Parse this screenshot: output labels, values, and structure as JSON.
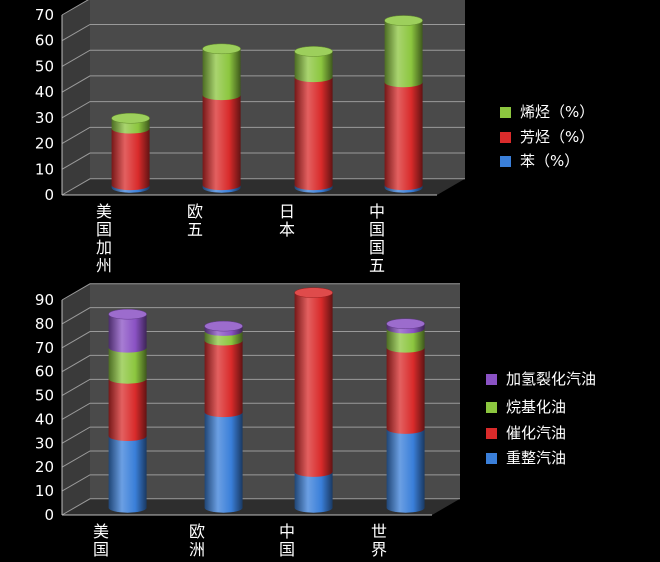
{
  "chart_data": [
    {
      "type": "bar",
      "stacked": true,
      "categories": [
        "美国加州",
        "欧五",
        "日本",
        "中国国五"
      ],
      "series": [
        {
          "name": "苯（%）",
          "color": "#3a7fd9",
          "values": [
            1,
            1,
            1,
            1
          ]
        },
        {
          "name": "芳烃（%）",
          "color": "#d92b2b",
          "values": [
            22,
            35,
            42,
            40
          ]
        },
        {
          "name": "烯烃（%）",
          "color": "#8cc63f",
          "values": [
            4,
            18,
            10,
            24
          ]
        }
      ],
      "ylim": [
        0,
        70
      ],
      "yticks": [
        0,
        10,
        20,
        30,
        40,
        50,
        60,
        70
      ],
      "legend": "right",
      "grid": true
    },
    {
      "type": "bar",
      "stacked": true,
      "categories": [
        "美国",
        "欧洲",
        "中国",
        "世界"
      ],
      "series": [
        {
          "name": "重整汽油",
          "color": "#3a7fd9",
          "values": [
            30,
            40,
            15,
            33
          ]
        },
        {
          "name": "催化汽油",
          "color": "#d92b2b",
          "values": [
            24,
            30,
            75,
            34
          ]
        },
        {
          "name": "烷基化油",
          "color": "#8cc63f",
          "values": [
            13,
            4,
            0,
            8
          ]
        },
        {
          "name": "加氢裂化汽油",
          "color": "#8a52c4",
          "values": [
            14,
            2,
            0,
            2
          ]
        }
      ],
      "ylim": [
        0,
        90
      ],
      "yticks": [
        0,
        10,
        20,
        30,
        40,
        50,
        60,
        70,
        80,
        90
      ],
      "legend": "right",
      "grid": true
    }
  ]
}
